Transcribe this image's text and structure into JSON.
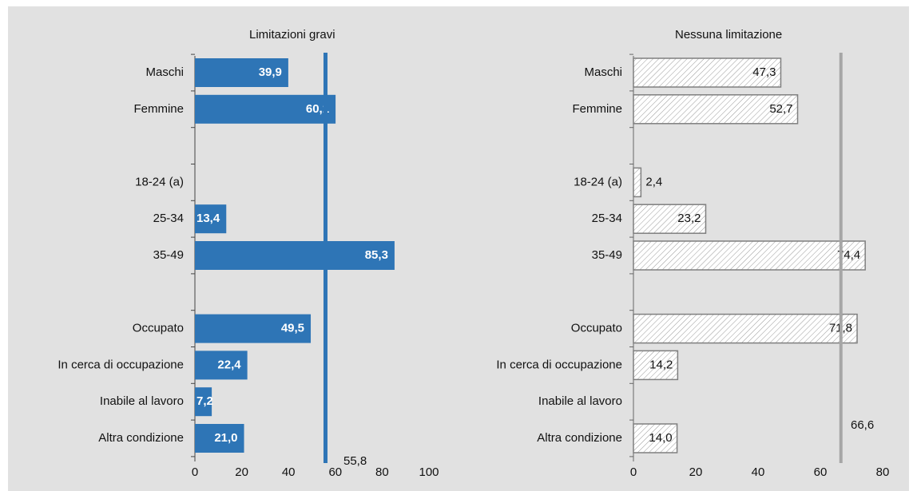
{
  "chart_data": [
    {
      "type": "bar",
      "orientation": "horizontal",
      "title": "Limitazioni gravi",
      "categories": [
        "Maschi",
        "Femmine",
        null,
        "18-24 (a)",
        "25-34",
        "35-49",
        null,
        "Occupato",
        "In cerca di occupazione",
        "Inabile al lavoro",
        "Altra condizione"
      ],
      "values": [
        39.9,
        60.1,
        null,
        null,
        13.4,
        85.3,
        null,
        49.5,
        22.4,
        7.2,
        21.0
      ],
      "value_labels": [
        "39,9",
        "60,1",
        null,
        null,
        "13,4",
        "85,3",
        null,
        "49,5",
        "22,4",
        "7,2",
        "21,0"
      ],
      "color": "#2e75b6",
      "xlim": [
        0,
        100
      ],
      "xticks": [
        0,
        20,
        40,
        60,
        80,
        100
      ],
      "reference": {
        "value": 55.8,
        "label": "55,8",
        "color": "#2e75b6"
      }
    },
    {
      "type": "bar",
      "orientation": "horizontal",
      "title": "Nessuna limitazione",
      "categories": [
        "Maschi",
        "Femmine",
        null,
        "18-24 (a)",
        "25-34",
        "35-49",
        null,
        "Occupato",
        "In cerca di occupazione",
        "Inabile al lavoro",
        "Altra condizione"
      ],
      "values": [
        47.3,
        52.7,
        null,
        2.4,
        23.2,
        74.4,
        null,
        71.8,
        14.2,
        null,
        14.0
      ],
      "value_labels": [
        "47,3",
        "52,7",
        null,
        "2,4",
        "23,2",
        "74,4",
        null,
        "71,8",
        "14,2",
        null,
        "14,0"
      ],
      "color": "hatched",
      "xlim": [
        0,
        80
      ],
      "xticks": [
        0,
        20,
        40,
        60,
        80
      ],
      "reference": {
        "value": 66.6,
        "label": "66,6",
        "color": "#a6a6a6"
      }
    }
  ]
}
